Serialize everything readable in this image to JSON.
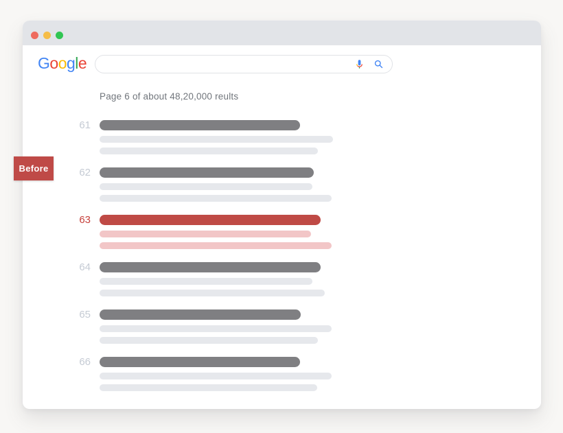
{
  "window": {
    "traffic_lights": [
      {
        "name": "close",
        "color": "#ee6b5f"
      },
      {
        "name": "minimize",
        "color": "#f5bd48"
      },
      {
        "name": "zoom",
        "color": "#31c553"
      }
    ],
    "title_bar_color": "#e2e4e8"
  },
  "header": {
    "logo": {
      "text": "Google",
      "letters": [
        {
          "ch": "G",
          "color": "#4285F4"
        },
        {
          "ch": "o",
          "color": "#EA4335"
        },
        {
          "ch": "o",
          "color": "#FBBC05"
        },
        {
          "ch": "g",
          "color": "#4285F4"
        },
        {
          "ch": "l",
          "color": "#34A853"
        },
        {
          "ch": "e",
          "color": "#EA4335"
        }
      ]
    },
    "search": {
      "value": "",
      "placeholder": "",
      "icons": [
        "mic-icon",
        "search-icon"
      ],
      "icon_accent": "#4285F4"
    }
  },
  "results": {
    "status_text": "Page 6 of about 48,20,000 reults",
    "page_number": "6",
    "result_count": "48,20,000",
    "items": [
      {
        "rank": "61",
        "highlighted": false,
        "title_width": 292,
        "line_widths": [
          340,
          318
        ]
      },
      {
        "rank": "62",
        "highlighted": false,
        "title_width": 312,
        "line_widths": [
          310,
          338
        ]
      },
      {
        "rank": "63",
        "highlighted": true,
        "title_width": 322,
        "line_widths": [
          308,
          338
        ]
      },
      {
        "rank": "64",
        "highlighted": false,
        "title_width": 322,
        "line_widths": [
          310,
          328
        ]
      },
      {
        "rank": "65",
        "highlighted": false,
        "title_width": 293,
        "line_widths": [
          338,
          318
        ]
      },
      {
        "rank": "66",
        "highlighted": false,
        "title_width": 292,
        "line_widths": [
          338,
          317
        ]
      }
    ],
    "colors": {
      "title_normal": "#7f7f82",
      "line_normal": "#e6e8ec",
      "rank_normal": "#c5cbd4",
      "title_highlight": "#bf4a45",
      "line_highlight": "#f2c6c7",
      "rank_highlight": "#c6403b"
    }
  },
  "annotation": {
    "label": "Before",
    "bg_color": "#bf4a47",
    "text_color": "#ffffff"
  }
}
